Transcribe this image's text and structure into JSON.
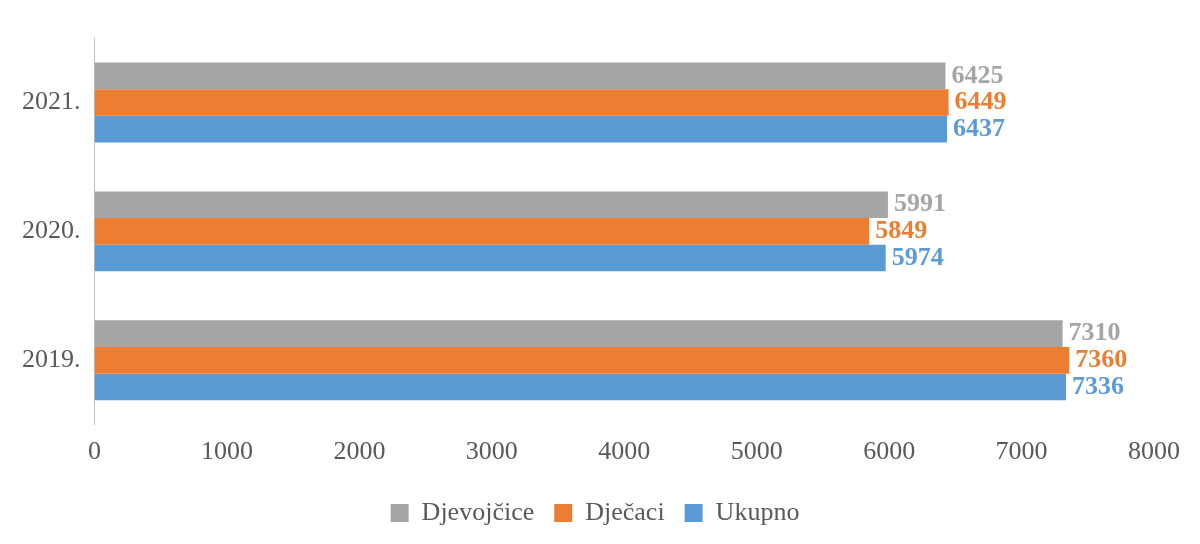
{
  "chart_data": {
    "type": "bar",
    "orientation": "horizontal",
    "categories": [
      "2021.",
      "2020.",
      "2019."
    ],
    "series": [
      {
        "name": "Djevojčice",
        "color": "#a5a5a5",
        "values": [
          6425,
          5991,
          7310
        ]
      },
      {
        "name": "Dječaci",
        "color": "#ed7d31",
        "values": [
          6449,
          5849,
          7360
        ]
      },
      {
        "name": "Ukupno",
        "color": "#5b9bd5",
        "values": [
          6437,
          5974,
          7336
        ]
      }
    ],
    "xlim": [
      0,
      8000
    ],
    "xticks": [
      0,
      1000,
      2000,
      3000,
      4000,
      5000,
      6000,
      7000,
      8000
    ],
    "grid": false,
    "legend": "bottom",
    "data_labels": true
  }
}
